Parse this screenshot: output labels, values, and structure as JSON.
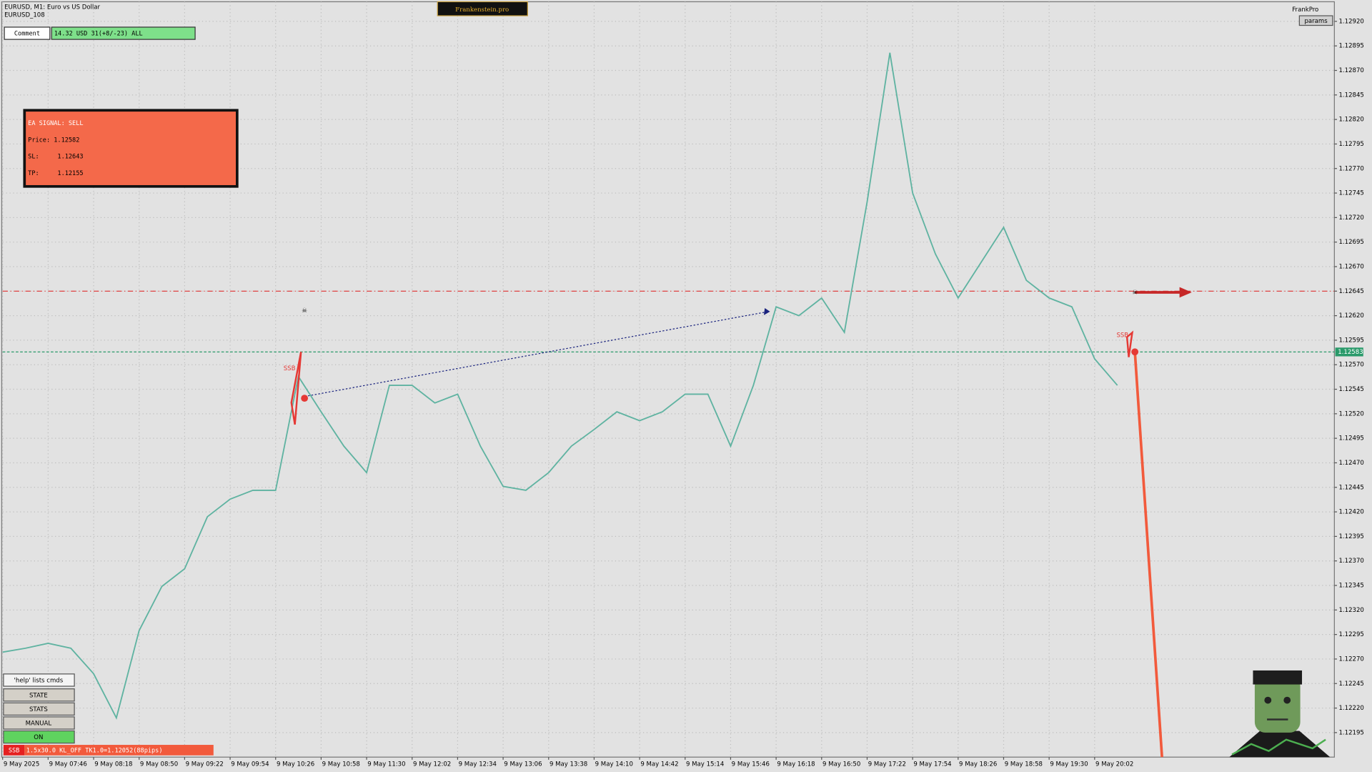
{
  "header": {
    "symbol": "EURUSD, M1:  Euro vs US Dollar",
    "account": "EURUSD_108",
    "brand": "Frankenstein.pro",
    "user": "FrankPro",
    "params": "params"
  },
  "comment": {
    "label": "Comment",
    "value": "14.32 USD 31(+8/-23) ALL"
  },
  "signal": {
    "title": "EA SIGNAL: SELL",
    "lines": [
      "Price: 1.12582",
      "SL:     1.12643",
      "TP:     1.12155"
    ]
  },
  "buttons": [
    "'help' lists cmds",
    "STATE",
    "STATS",
    "MANUAL",
    "ON"
  ],
  "status": {
    "tag": "SSB",
    "text": "1.5x30.0 KL_OFF TK1.0=1.12052(88pips)"
  },
  "chart_data": {
    "type": "line",
    "color": "#5fb3a1",
    "grid": true,
    "categories": [
      "9 May 2025",
      null,
      "9 May 07:46",
      null,
      "9 May 08:18",
      null,
      "9 May 08:50",
      null,
      "9 May 09:22",
      null,
      "9 May 09:54",
      null,
      "9 May 10:26",
      null,
      "9 May 10:58",
      null,
      "9 May 11:30",
      null,
      "9 May 12:02",
      null,
      "9 May 12:34",
      null,
      "9 May 13:06",
      null,
      "9 May 13:38",
      null,
      "9 May 14:10",
      null,
      "9 May 14:42",
      null,
      "9 May 15:14",
      null,
      "9 May 15:46",
      null,
      "9 May 16:18",
      null,
      "9 May 16:50",
      null,
      "9 May 17:22",
      null,
      "9 May 17:54",
      null,
      "9 May 18:26",
      null,
      "9 May 18:58",
      null,
      "9 May 19:30",
      null,
      "9 May 20:02",
      null
    ],
    "values": [
      1.12277,
      1.12281,
      1.12286,
      1.12281,
      1.12255,
      1.1221,
      1.12299,
      1.12344,
      1.12362,
      1.12415,
      1.12433,
      1.12442,
      1.12442,
      1.12558,
      1.12522,
      1.12487,
      1.1246,
      1.12549,
      1.12549,
      1.12531,
      1.1254,
      1.12487,
      1.12446,
      1.12442,
      1.1246,
      1.12487,
      1.12504,
      1.12522,
      1.12513,
      1.12522,
      1.1254,
      1.1254,
      1.12487,
      1.12549,
      1.12629,
      1.1262,
      1.12638,
      1.12603,
      1.12736,
      1.12888,
      1.12745,
      1.12683,
      1.12638,
      1.12674,
      1.1271,
      1.12656,
      1.12638,
      1.12629,
      1.12576,
      1.12549
    ],
    "ylim": [
      1.1217,
      1.1294
    ],
    "yticks": [
      1.12195,
      {
        "value": 1.1222,
        "label": "1.12220"
      },
      1.12245,
      {
        "value": 1.1227,
        "label": "1.12270"
      },
      1.12295,
      {
        "value": 1.1232,
        "label": "1.12320"
      },
      1.12345,
      {
        "value": 1.1237,
        "label": "1.12370"
      },
      1.12395,
      {
        "value": 1.1242,
        "label": "1.12420"
      },
      1.12445,
      {
        "value": 1.1247,
        "label": "1.12470"
      },
      1.12495,
      {
        "value": 1.1252,
        "label": "1.12520"
      },
      1.12545,
      {
        "value": 1.1257,
        "label": "1.12570"
      },
      1.12595,
      {
        "value": 1.1262,
        "label": "1.12620"
      },
      1.12645,
      {
        "value": 1.1267,
        "label": "1.12670"
      },
      1.12695,
      {
        "value": 1.1272,
        "label": "1.12720"
      },
      1.12745,
      {
        "value": 1.1277,
        "label": "1.12770"
      },
      1.12795,
      {
        "value": 1.1282,
        "label": "1.12820"
      },
      1.12845,
      {
        "value": 1.1287,
        "label": "1.12870"
      },
      1.12895,
      {
        "value": 1.1292,
        "label": "1.12920"
      }
    ],
    "hlines": [
      {
        "value": 1.12645,
        "color": "#e03030"
      },
      {
        "value": 1.12583,
        "color": "#2a9a6a"
      }
    ],
    "markers": [
      "SSB",
      "SSB"
    ]
  }
}
